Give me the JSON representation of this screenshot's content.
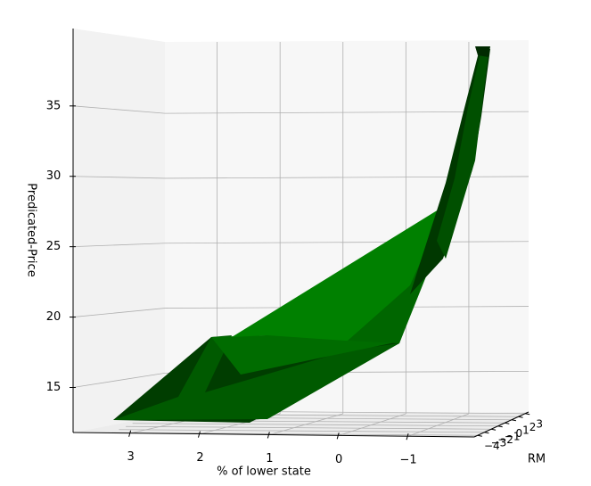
{
  "chart_data": {
    "type": "surface3d",
    "xlabel": "% of lower state",
    "ylabel": "RM",
    "zlabel": "Predicated-Price",
    "xlim": [
      3.83,
      -1.95
    ],
    "xticks": [
      3,
      2,
      1,
      0,
      {
        "value": -1,
        "label": "−1"
      }
    ],
    "yticks": [
      {
        "value": -4,
        "label": "−4"
      },
      {
        "value": -3,
        "label": "−3"
      },
      {
        "value": -2,
        "label": "−2"
      },
      {
        "value": -1,
        "label": "−1"
      },
      0,
      1,
      2,
      3
    ],
    "ylim": [
      -4.5,
      3.5
    ],
    "zlim": [
      11.8,
      40.5
    ],
    "zticks": [
      15,
      20,
      25,
      30,
      35
    ],
    "color": "#008000",
    "grid": true
  }
}
